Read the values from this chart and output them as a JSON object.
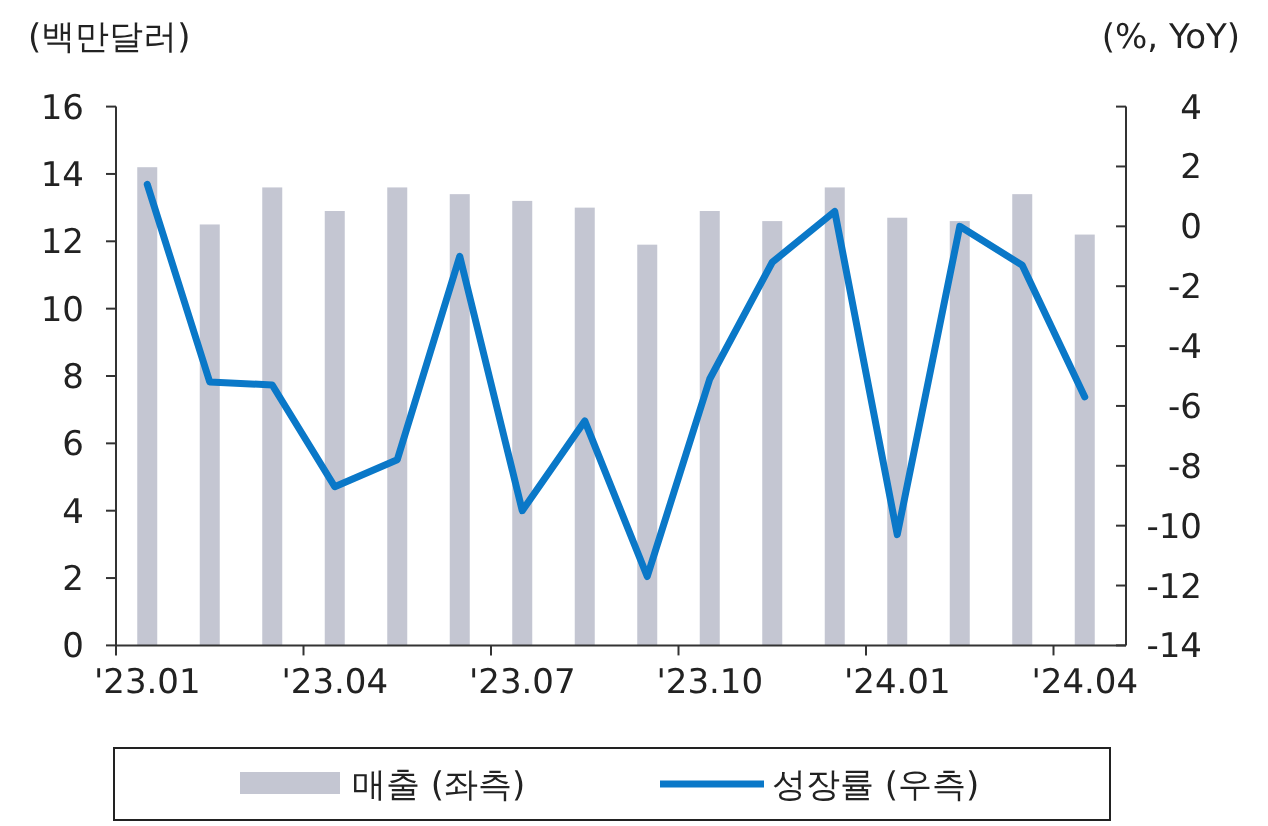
{
  "chart_data": {
    "type": "bar",
    "ylabel": "(백만달러)",
    "y2label": "(%, YoY)",
    "categories": [
      "'23.01",
      null,
      null,
      "'23.04",
      null,
      null,
      "'23.07",
      null,
      null,
      "'23.10",
      null,
      null,
      "'24.01",
      null,
      null,
      "'24.04"
    ],
    "series": [
      {
        "name": "매출 (좌측)",
        "color": "#c4c6d2",
        "values": [
          14.2,
          12.5,
          13.6,
          12.9,
          13.6,
          13.4,
          13.2,
          13.0,
          11.9,
          12.9,
          12.6,
          13.6,
          12.7,
          12.6,
          13.4,
          12.2
        ]
      },
      {
        "name": "성장률 (우측)",
        "type": "line",
        "axis": "y2",
        "color": "#0a78c8",
        "values": [
          1.4,
          -5.2,
          -5.3,
          -8.7,
          -7.8,
          -1.0,
          -9.5,
          -6.5,
          -11.7,
          -5.1,
          -1.2,
          0.5,
          -10.3,
          0.0,
          -1.3,
          -5.7
        ]
      }
    ],
    "ylim": [
      0,
      16
    ],
    "yticks": [
      0,
      2,
      4,
      6,
      8,
      10,
      12,
      14,
      16
    ],
    "y2lim": [
      -14,
      4
    ],
    "y2ticks": [
      -14,
      -12,
      -10,
      -8,
      -6,
      -4,
      -2,
      0,
      2,
      4
    ],
    "legend": "bottom"
  }
}
